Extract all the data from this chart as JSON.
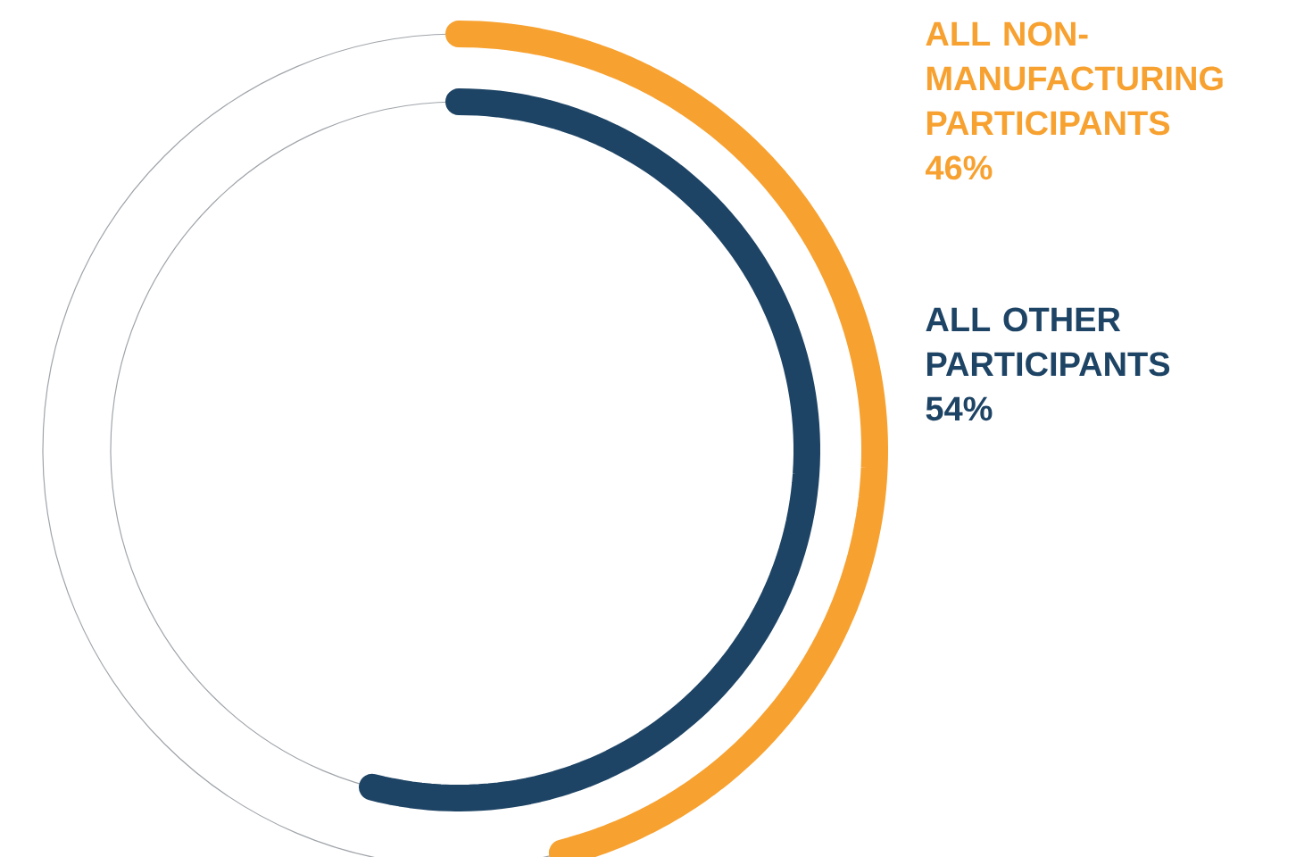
{
  "chart_data": {
    "type": "other",
    "categories": [
      "ALL NON-MANUFACTURING PARTICIPANTS",
      "ALL OTHER PARTICIPANTS"
    ],
    "values": [
      46,
      54
    ],
    "value_labels": [
      "46%",
      "54%"
    ],
    "colors": [
      "#f7a130",
      "#1e4465"
    ]
  }
}
